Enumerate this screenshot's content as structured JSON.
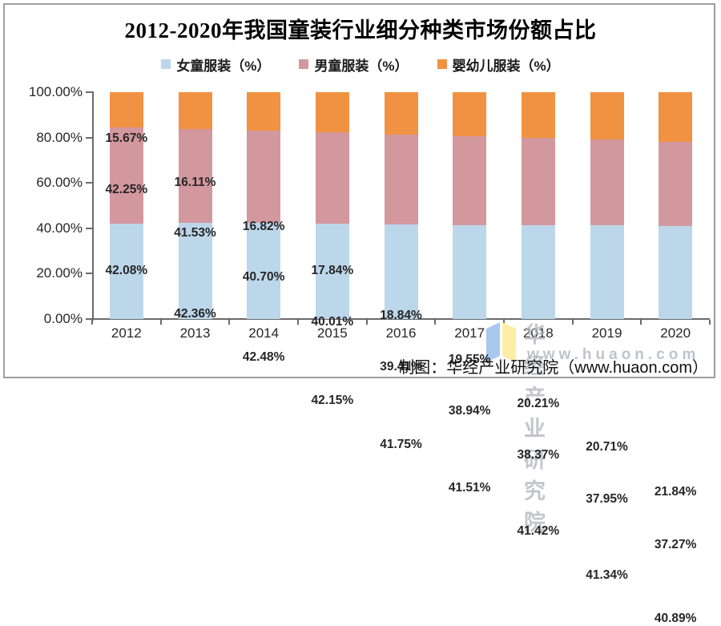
{
  "title": "2012-2020年我国童装行业细分种类市场份额占比",
  "legend": [
    {
      "label": "女童服装（%）",
      "color": "#bcd6ea"
    },
    {
      "label": "男童服装（%）",
      "color": "#d3979e"
    },
    {
      "label": "婴幼儿服装（%）",
      "color": "#f09242"
    }
  ],
  "chart_data": {
    "type": "bar",
    "stacked": true,
    "title": "2012-2020年我国童装行业细分种类市场份额占比",
    "categories": [
      "2012",
      "2013",
      "2014",
      "2015",
      "2016",
      "2017",
      "2018",
      "2019",
      "2020"
    ],
    "series": [
      {
        "name": "女童服装（%）",
        "color": "#bcd6ea",
        "values": [
          42.08,
          42.36,
          42.48,
          42.15,
          41.75,
          41.51,
          41.42,
          41.34,
          40.89
        ]
      },
      {
        "name": "男童服装（%）",
        "color": "#d3979e",
        "values": [
          42.25,
          41.53,
          40.7,
          40.01,
          39.41,
          38.94,
          38.37,
          37.95,
          37.27
        ]
      },
      {
        "name": "婴幼儿服装（%）",
        "color": "#f09242",
        "values": [
          15.67,
          16.11,
          16.82,
          17.84,
          18.84,
          19.55,
          20.21,
          20.71,
          21.84
        ]
      }
    ],
    "ylim": [
      0,
      100
    ],
    "y_ticks": [
      {
        "label": "100.00%",
        "value": 100
      },
      {
        "label": "80.00%",
        "value": 80
      },
      {
        "label": "60.00%",
        "value": 60
      },
      {
        "label": "40.00%",
        "value": 40
      },
      {
        "label": "20.00%",
        "value": 20
      },
      {
        "label": "0.00%",
        "value": 0
      }
    ],
    "grid": false,
    "legend_position": "top",
    "data_label_format": "0.00%"
  },
  "footer": {
    "credit": "制图：华经产业研究院（www.huaon.com）"
  },
  "watermark": {
    "name": "华经产业研究院",
    "url": "www.huaon.com",
    "logo_blue": "#a9c8ef",
    "logo_yellow": "#fdedA6"
  }
}
